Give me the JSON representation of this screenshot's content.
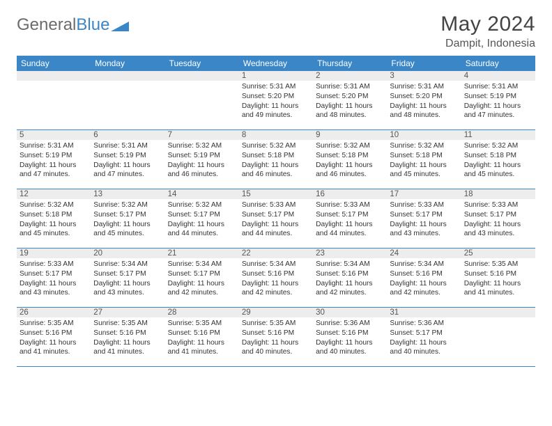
{
  "logo": {
    "text1": "General",
    "text2": "Blue",
    "text1_color": "#6b6b6b",
    "text2_color": "#3b86c6",
    "triangle_color": "#3b86c6"
  },
  "title": "May 2024",
  "location": "Dampit, Indonesia",
  "header_bg": "#3b86c6",
  "daynum_bg": "#ededed",
  "border_color": "#3b86c6",
  "day_names": [
    "Sunday",
    "Monday",
    "Tuesday",
    "Wednesday",
    "Thursday",
    "Friday",
    "Saturday"
  ],
  "weeks": [
    [
      {
        "n": "",
        "sr": "",
        "ss": "",
        "dl": ""
      },
      {
        "n": "",
        "sr": "",
        "ss": "",
        "dl": ""
      },
      {
        "n": "",
        "sr": "",
        "ss": "",
        "dl": ""
      },
      {
        "n": "1",
        "sr": "Sunrise: 5:31 AM",
        "ss": "Sunset: 5:20 PM",
        "dl": "Daylight: 11 hours and 49 minutes."
      },
      {
        "n": "2",
        "sr": "Sunrise: 5:31 AM",
        "ss": "Sunset: 5:20 PM",
        "dl": "Daylight: 11 hours and 48 minutes."
      },
      {
        "n": "3",
        "sr": "Sunrise: 5:31 AM",
        "ss": "Sunset: 5:20 PM",
        "dl": "Daylight: 11 hours and 48 minutes."
      },
      {
        "n": "4",
        "sr": "Sunrise: 5:31 AM",
        "ss": "Sunset: 5:19 PM",
        "dl": "Daylight: 11 hours and 47 minutes."
      }
    ],
    [
      {
        "n": "5",
        "sr": "Sunrise: 5:31 AM",
        "ss": "Sunset: 5:19 PM",
        "dl": "Daylight: 11 hours and 47 minutes."
      },
      {
        "n": "6",
        "sr": "Sunrise: 5:31 AM",
        "ss": "Sunset: 5:19 PM",
        "dl": "Daylight: 11 hours and 47 minutes."
      },
      {
        "n": "7",
        "sr": "Sunrise: 5:32 AM",
        "ss": "Sunset: 5:19 PM",
        "dl": "Daylight: 11 hours and 46 minutes."
      },
      {
        "n": "8",
        "sr": "Sunrise: 5:32 AM",
        "ss": "Sunset: 5:18 PM",
        "dl": "Daylight: 11 hours and 46 minutes."
      },
      {
        "n": "9",
        "sr": "Sunrise: 5:32 AM",
        "ss": "Sunset: 5:18 PM",
        "dl": "Daylight: 11 hours and 46 minutes."
      },
      {
        "n": "10",
        "sr": "Sunrise: 5:32 AM",
        "ss": "Sunset: 5:18 PM",
        "dl": "Daylight: 11 hours and 45 minutes."
      },
      {
        "n": "11",
        "sr": "Sunrise: 5:32 AM",
        "ss": "Sunset: 5:18 PM",
        "dl": "Daylight: 11 hours and 45 minutes."
      }
    ],
    [
      {
        "n": "12",
        "sr": "Sunrise: 5:32 AM",
        "ss": "Sunset: 5:18 PM",
        "dl": "Daylight: 11 hours and 45 minutes."
      },
      {
        "n": "13",
        "sr": "Sunrise: 5:32 AM",
        "ss": "Sunset: 5:17 PM",
        "dl": "Daylight: 11 hours and 45 minutes."
      },
      {
        "n": "14",
        "sr": "Sunrise: 5:32 AM",
        "ss": "Sunset: 5:17 PM",
        "dl": "Daylight: 11 hours and 44 minutes."
      },
      {
        "n": "15",
        "sr": "Sunrise: 5:33 AM",
        "ss": "Sunset: 5:17 PM",
        "dl": "Daylight: 11 hours and 44 minutes."
      },
      {
        "n": "16",
        "sr": "Sunrise: 5:33 AM",
        "ss": "Sunset: 5:17 PM",
        "dl": "Daylight: 11 hours and 44 minutes."
      },
      {
        "n": "17",
        "sr": "Sunrise: 5:33 AM",
        "ss": "Sunset: 5:17 PM",
        "dl": "Daylight: 11 hours and 43 minutes."
      },
      {
        "n": "18",
        "sr": "Sunrise: 5:33 AM",
        "ss": "Sunset: 5:17 PM",
        "dl": "Daylight: 11 hours and 43 minutes."
      }
    ],
    [
      {
        "n": "19",
        "sr": "Sunrise: 5:33 AM",
        "ss": "Sunset: 5:17 PM",
        "dl": "Daylight: 11 hours and 43 minutes."
      },
      {
        "n": "20",
        "sr": "Sunrise: 5:34 AM",
        "ss": "Sunset: 5:17 PM",
        "dl": "Daylight: 11 hours and 43 minutes."
      },
      {
        "n": "21",
        "sr": "Sunrise: 5:34 AM",
        "ss": "Sunset: 5:17 PM",
        "dl": "Daylight: 11 hours and 42 minutes."
      },
      {
        "n": "22",
        "sr": "Sunrise: 5:34 AM",
        "ss": "Sunset: 5:16 PM",
        "dl": "Daylight: 11 hours and 42 minutes."
      },
      {
        "n": "23",
        "sr": "Sunrise: 5:34 AM",
        "ss": "Sunset: 5:16 PM",
        "dl": "Daylight: 11 hours and 42 minutes."
      },
      {
        "n": "24",
        "sr": "Sunrise: 5:34 AM",
        "ss": "Sunset: 5:16 PM",
        "dl": "Daylight: 11 hours and 42 minutes."
      },
      {
        "n": "25",
        "sr": "Sunrise: 5:35 AM",
        "ss": "Sunset: 5:16 PM",
        "dl": "Daylight: 11 hours and 41 minutes."
      }
    ],
    [
      {
        "n": "26",
        "sr": "Sunrise: 5:35 AM",
        "ss": "Sunset: 5:16 PM",
        "dl": "Daylight: 11 hours and 41 minutes."
      },
      {
        "n": "27",
        "sr": "Sunrise: 5:35 AM",
        "ss": "Sunset: 5:16 PM",
        "dl": "Daylight: 11 hours and 41 minutes."
      },
      {
        "n": "28",
        "sr": "Sunrise: 5:35 AM",
        "ss": "Sunset: 5:16 PM",
        "dl": "Daylight: 11 hours and 41 minutes."
      },
      {
        "n": "29",
        "sr": "Sunrise: 5:35 AM",
        "ss": "Sunset: 5:16 PM",
        "dl": "Daylight: 11 hours and 40 minutes."
      },
      {
        "n": "30",
        "sr": "Sunrise: 5:36 AM",
        "ss": "Sunset: 5:16 PM",
        "dl": "Daylight: 11 hours and 40 minutes."
      },
      {
        "n": "31",
        "sr": "Sunrise: 5:36 AM",
        "ss": "Sunset: 5:17 PM",
        "dl": "Daylight: 11 hours and 40 minutes."
      },
      {
        "n": "",
        "sr": "",
        "ss": "",
        "dl": ""
      }
    ]
  ]
}
